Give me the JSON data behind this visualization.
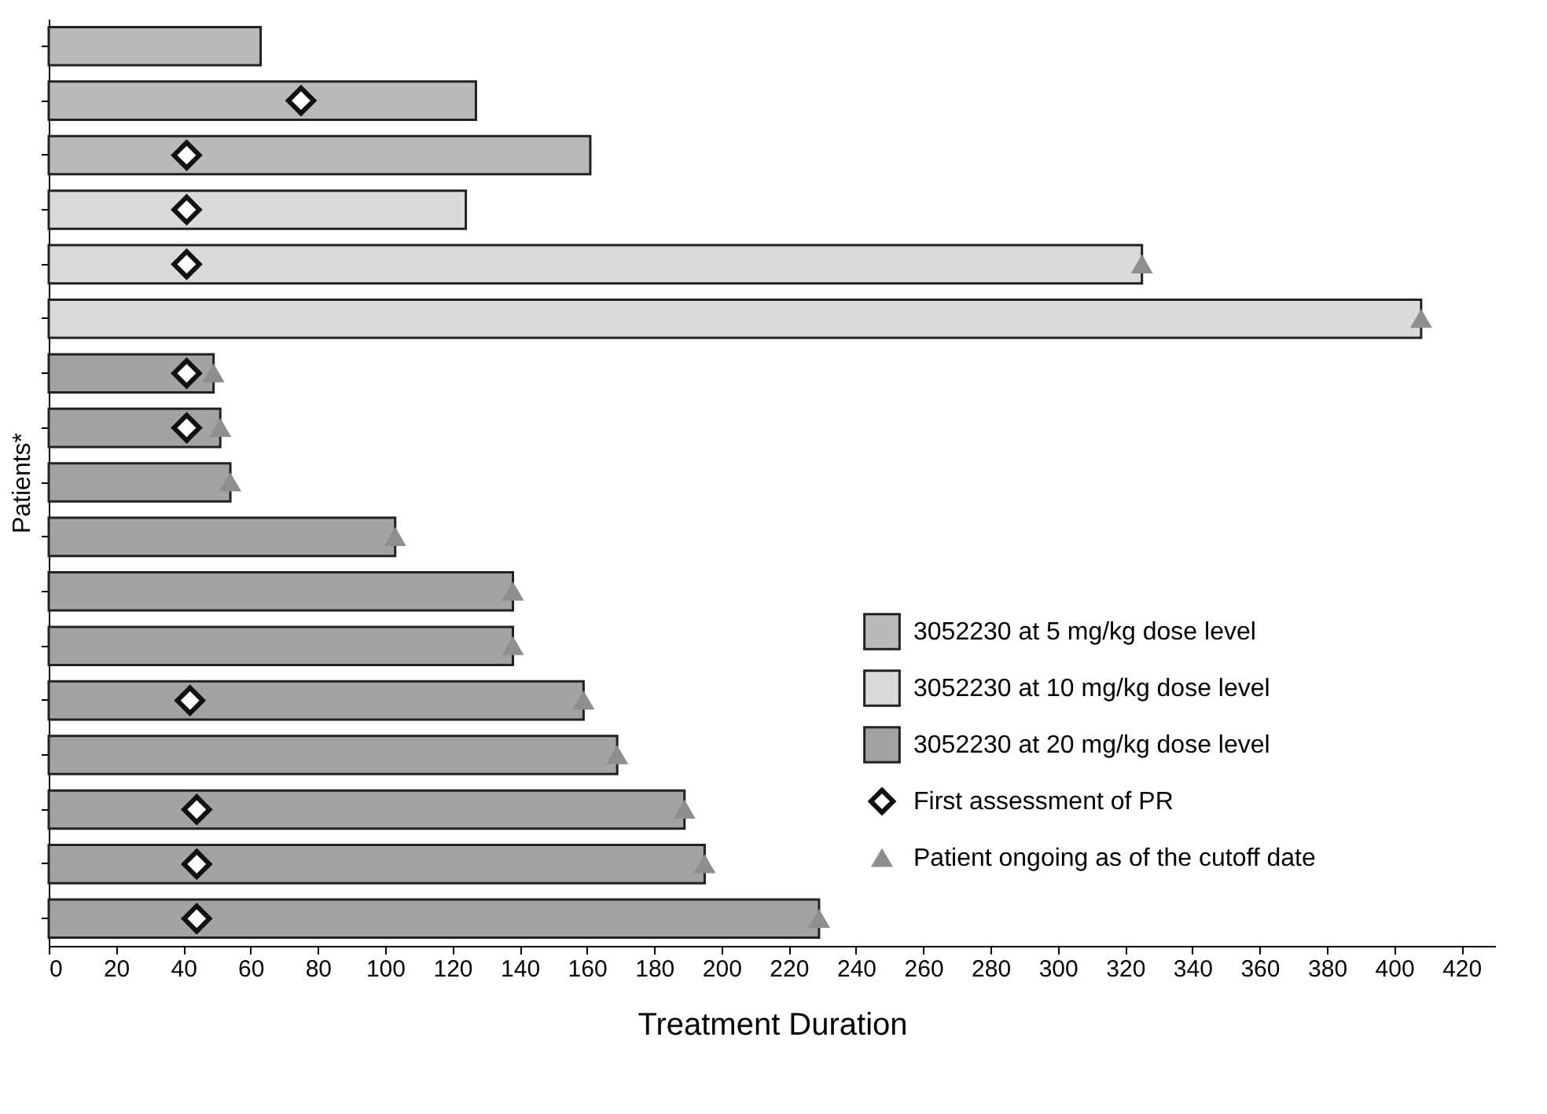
{
  "chart_data": {
    "type": "bar",
    "orientation": "horizontal",
    "xlabel": "Treatment Duration",
    "ylabel": "Patients*",
    "categories": [
      null,
      null,
      null,
      null,
      null,
      null,
      null,
      null,
      null,
      null,
      null,
      null,
      null,
      null,
      null,
      null,
      null
    ],
    "series": [
      {
        "name": "3052230 at 5 mg/kg dose level",
        "color": "#b9b9b9",
        "values": [
          63,
          127,
          161,
          null,
          null,
          null,
          null,
          null,
          null,
          null,
          null,
          null,
          null,
          null,
          null,
          null,
          null
        ]
      },
      {
        "name": "3052230 at 10 mg/kg dose level",
        "color": "#dadada",
        "values": [
          null,
          null,
          null,
          124,
          325,
          408,
          null,
          null,
          null,
          null,
          null,
          null,
          null,
          null,
          null,
          null,
          null
        ]
      },
      {
        "name": "3052230 at 20 mg/kg dose level",
        "color": "#a3a3a3",
        "values": [
          null,
          null,
          null,
          null,
          null,
          null,
          49,
          51,
          54,
          103,
          138,
          138,
          159,
          169,
          189,
          195,
          229
        ]
      },
      {
        "name": "First assessment of PR",
        "type": "scatter",
        "marker": "diamond",
        "color": "#ffffff",
        "values": [
          null,
          75,
          41,
          41,
          41,
          null,
          41,
          41,
          null,
          null,
          null,
          null,
          42,
          null,
          44,
          44,
          44
        ]
      },
      {
        "name": "Patient ongoing as of the cutoff date",
        "type": "scatter",
        "marker": "triangle",
        "color": "#8e8e8e",
        "values": [
          null,
          null,
          null,
          null,
          325,
          408,
          49,
          51,
          54,
          103,
          138,
          138,
          159,
          169,
          189,
          195,
          229
        ]
      }
    ],
    "xlim": [
      0,
      430
    ],
    "xticks": [
      0,
      20,
      40,
      60,
      80,
      100,
      120,
      140,
      160,
      180,
      200,
      220,
      240,
      260,
      280,
      300,
      320,
      340,
      360,
      380,
      400,
      420
    ],
    "tick_labels": "x",
    "grid": false,
    "legend": "bottom right"
  }
}
